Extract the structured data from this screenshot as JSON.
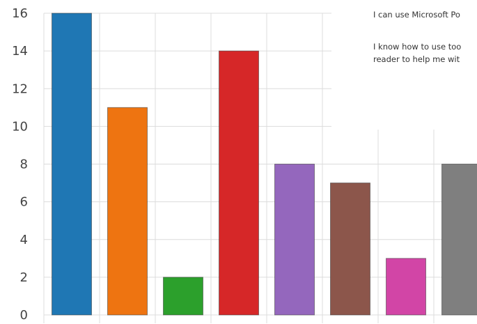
{
  "chart_data": {
    "type": "bar",
    "categories": [
      "",
      "",
      "",
      "",
      "",
      "",
      "",
      ""
    ],
    "values": [
      16,
      11,
      2,
      14,
      8,
      7,
      3,
      8
    ],
    "colors": [
      "#1f77b4",
      "#ee7411",
      "#2ca02c",
      "#d62728",
      "#9467bd",
      "#8c564b",
      "#d245a6",
      "#7f7f7f"
    ],
    "ylim": [
      0,
      16
    ],
    "yticks": [
      "0",
      "2",
      "4",
      "6",
      "8",
      "10",
      "12",
      "14",
      "16"
    ],
    "grid": true,
    "legend": {
      "placement": "top-right",
      "entries": [
        "I can use Microsoft Po",
        "I know how to use too\nreader to help me wit"
      ]
    }
  }
}
